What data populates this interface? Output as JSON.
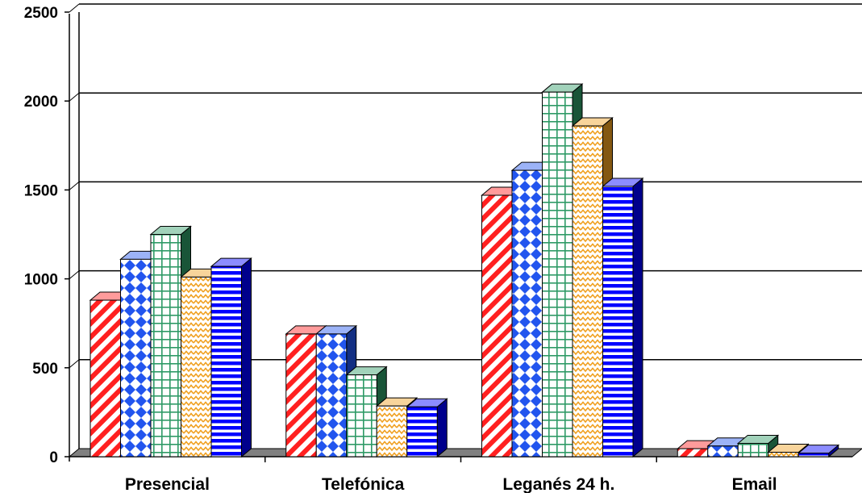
{
  "chart_data": {
    "type": "bar",
    "title": "",
    "xlabel": "",
    "ylabel": "",
    "categories": [
      "Presencial",
      "Telefónica",
      "Leganés 24 h.",
      "Email"
    ],
    "ylim": [
      0,
      2500
    ],
    "yticks": [
      0,
      500,
      1000,
      1500,
      2000,
      2500
    ],
    "grid": true,
    "legend": "none",
    "series": [
      {
        "values": [
          880,
          690,
          1470,
          45
        ],
        "color": "#ff2020",
        "pattern": "diagonal-stripes"
      },
      {
        "values": [
          1110,
          690,
          1610,
          60
        ],
        "color": "#2255ee",
        "pattern": "diamonds"
      },
      {
        "values": [
          1250,
          460,
          2050,
          75
        ],
        "color": "#2e9a66",
        "pattern": "grid"
      },
      {
        "values": [
          1010,
          285,
          1860,
          25
        ],
        "color": "#f0a020",
        "pattern": "waves"
      },
      {
        "values": [
          1070,
          280,
          1520,
          20
        ],
        "color": "#0000ff",
        "pattern": "horizontal-stripes"
      }
    ]
  }
}
